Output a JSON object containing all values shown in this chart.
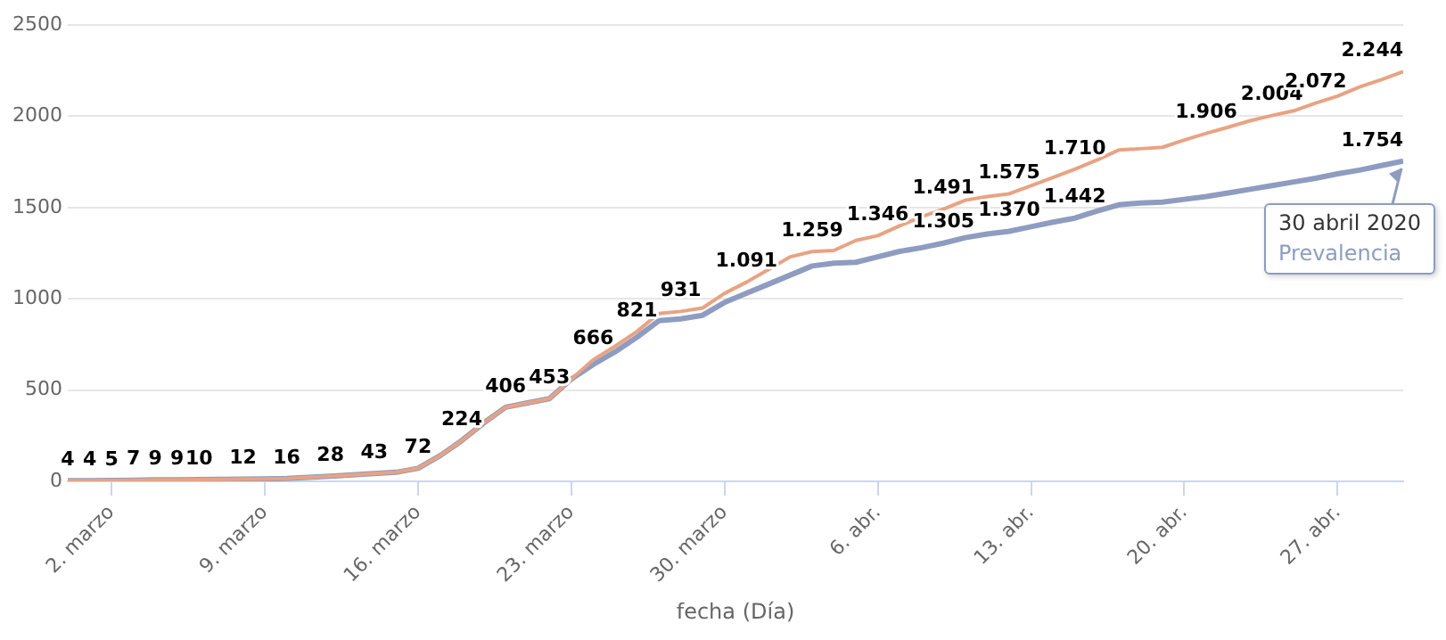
{
  "chart_data": {
    "type": "line",
    "xlabel": "fecha (Día)",
    "x": [
      "2020-02-29",
      "2020-03-01",
      "2020-03-02",
      "2020-03-03",
      "2020-03-04",
      "2020-03-05",
      "2020-03-06",
      "2020-03-07",
      "2020-03-08",
      "2020-03-09",
      "2020-03-10",
      "2020-03-11",
      "2020-03-12",
      "2020-03-13",
      "2020-03-14",
      "2020-03-15",
      "2020-03-16",
      "2020-03-17",
      "2020-03-18",
      "2020-03-19",
      "2020-03-20",
      "2020-03-21",
      "2020-03-22",
      "2020-03-23",
      "2020-03-24",
      "2020-03-25",
      "2020-03-26",
      "2020-03-27",
      "2020-03-28",
      "2020-03-29",
      "2020-03-30",
      "2020-03-31",
      "2020-04-01",
      "2020-04-02",
      "2020-04-03",
      "2020-04-04",
      "2020-04-05",
      "2020-04-06",
      "2020-04-07",
      "2020-04-08",
      "2020-04-09",
      "2020-04-10",
      "2020-04-11",
      "2020-04-12",
      "2020-04-13",
      "2020-04-14",
      "2020-04-15",
      "2020-04-16",
      "2020-04-17",
      "2020-04-18",
      "2020-04-19",
      "2020-04-20",
      "2020-04-21",
      "2020-04-22",
      "2020-04-23",
      "2020-04-24",
      "2020-04-25",
      "2020-04-26",
      "2020-04-27",
      "2020-04-28",
      "2020-04-29",
      "2020-04-30"
    ],
    "series": [
      {
        "color": "#e8a383",
        "values": [
          4,
          4,
          5,
          7,
          9,
          9,
          10,
          11,
          12,
          14,
          16,
          22,
          28,
          36,
          43,
          50,
          72,
          140,
          224,
          320,
          406,
          430,
          453,
          560,
          666,
          740,
          821,
          920,
          931,
          950,
          1030,
          1091,
          1160,
          1230,
          1259,
          1265,
          1320,
          1346,
          1400,
          1450,
          1491,
          1540,
          1560,
          1575,
          1620,
          1665,
          1710,
          1760,
          1815,
          1822,
          1830,
          1870,
          1906,
          1940,
          1975,
          2004,
          2030,
          2072,
          2110,
          2160,
          2200,
          2244
        ],
        "value_labels": [
          "4",
          "4",
          "5",
          "7",
          "9",
          "9",
          "10",
          null,
          "12",
          null,
          "16",
          null,
          "28",
          null,
          "43",
          null,
          "72",
          null,
          "224",
          null,
          "406",
          null,
          "453",
          null,
          "666",
          null,
          "821",
          null,
          "931",
          null,
          null,
          "1.091",
          null,
          null,
          "1.259",
          null,
          null,
          "1.346",
          null,
          null,
          "1.491",
          null,
          null,
          "1.575",
          null,
          null,
          "1.710",
          null,
          null,
          null,
          null,
          null,
          "1.906",
          null,
          null,
          "2.004",
          null,
          "2.072",
          null,
          null,
          null,
          "2.244"
        ]
      },
      {
        "name": "Prevalencia",
        "color": "#8d9cc0",
        "values": [
          4,
          4,
          5,
          7,
          9,
          9,
          10,
          11,
          12,
          14,
          16,
          22,
          28,
          36,
          43,
          50,
          72,
          140,
          224,
          320,
          406,
          430,
          453,
          560,
          640,
          710,
          790,
          880,
          890,
          910,
          980,
          1030,
          1080,
          1130,
          1180,
          1195,
          1200,
          1230,
          1260,
          1280,
          1305,
          1335,
          1355,
          1370,
          1395,
          1420,
          1442,
          1480,
          1515,
          1525,
          1530,
          1545,
          1560,
          1580,
          1600,
          1620,
          1640,
          1660,
          1685,
          1705,
          1730,
          1754
        ],
        "value_labels": [
          null,
          null,
          null,
          null,
          null,
          null,
          null,
          null,
          null,
          null,
          null,
          null,
          null,
          null,
          null,
          null,
          null,
          null,
          null,
          null,
          null,
          null,
          null,
          null,
          null,
          null,
          null,
          null,
          null,
          null,
          null,
          null,
          null,
          null,
          null,
          null,
          null,
          null,
          null,
          null,
          "1.305",
          null,
          null,
          "1.370",
          null,
          null,
          "1.442",
          null,
          null,
          null,
          null,
          null,
          null,
          null,
          null,
          null,
          null,
          null,
          null,
          null,
          null,
          "1.754"
        ]
      }
    ],
    "xlim": [
      "2020-02-29",
      "2020-04-30"
    ],
    "xticks": [
      {
        "value": "2020-03-02",
        "label": "2. marzo"
      },
      {
        "value": "2020-03-09",
        "label": "9. marzo"
      },
      {
        "value": "2020-03-16",
        "label": "16. marzo"
      },
      {
        "value": "2020-03-23",
        "label": "23. marzo"
      },
      {
        "value": "2020-03-30",
        "label": "30. marzo"
      },
      {
        "value": "2020-04-06",
        "label": "6. abr."
      },
      {
        "value": "2020-04-13",
        "label": "13. abr."
      },
      {
        "value": "2020-04-20",
        "label": "20. abr."
      },
      {
        "value": "2020-04-27",
        "label": "27. abr."
      }
    ],
    "ylim": [
      0,
      2500
    ],
    "yticks": [
      0,
      500,
      1000,
      1500,
      2000,
      2500
    ],
    "grid": "y",
    "legend": false,
    "marker": "none",
    "line_style": "solid",
    "annotations": [
      {
        "text": "30 abril 2020",
        "x": "2020-04-30",
        "y": 1754
      }
    ]
  }
}
